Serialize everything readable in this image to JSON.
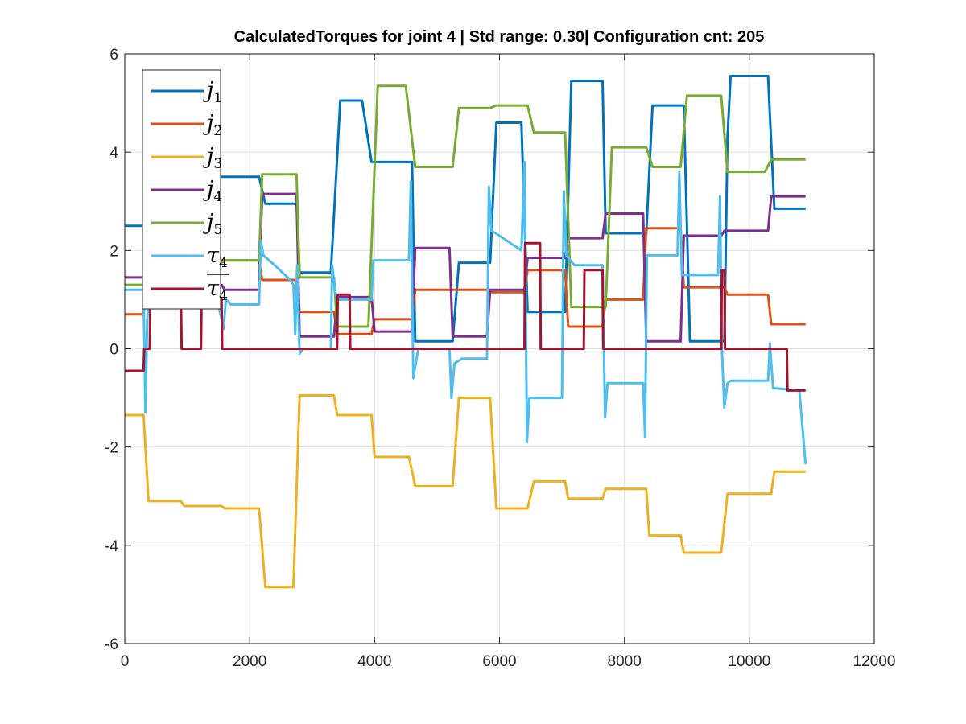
{
  "chart_data": {
    "type": "line",
    "title": "CalculatedTorques for joint 4 | Std range: 0.30| Configuration cnt: 205",
    "xlabel": "",
    "ylabel": "",
    "xlim": [
      0,
      12000
    ],
    "ylim": [
      -6,
      6
    ],
    "xticks": [
      0,
      2000,
      4000,
      6000,
      8000,
      10000,
      12000
    ],
    "yticks": [
      -6,
      -4,
      -2,
      0,
      2,
      4,
      6
    ],
    "xtick_labels": [
      "0",
      "2000",
      "4000",
      "6000",
      "8000",
      "10000",
      "12000"
    ],
    "ytick_labels": [
      "-6",
      "-4",
      "-2",
      "0",
      "2",
      "4",
      "6"
    ],
    "grid": true,
    "legend_position": "top-left",
    "series": [
      {
        "name": "j",
        "sub": "1",
        "overline": false,
        "color": "#0072BD",
        "x": [
          0,
          300,
          380,
          1500,
          1600,
          2150,
          2250,
          2750,
          2800,
          3300,
          3450,
          3600,
          3800,
          3950,
          4050,
          4600,
          4650,
          4850,
          5250,
          5350,
          5850,
          5950,
          6350,
          6450,
          6750,
          7050,
          7150,
          7650,
          7700,
          8350,
          8450,
          8800,
          8950,
          9050,
          9450,
          9600,
          9650,
          9700,
          10100,
          10300,
          10400,
          10900
        ],
        "y": [
          2.5,
          2.5,
          3.5,
          3.5,
          3.5,
          3.5,
          2.95,
          2.95,
          1.55,
          1.55,
          5.05,
          5.05,
          5.05,
          3.8,
          3.8,
          3.8,
          0.15,
          0.15,
          0.15,
          1.75,
          1.75,
          4.6,
          4.6,
          0.75,
          0.75,
          0.75,
          5.45,
          5.45,
          2.35,
          2.35,
          4.95,
          4.95,
          4.95,
          0.15,
          0.15,
          0.15,
          4.3,
          5.55,
          5.55,
          5.55,
          2.85,
          2.85
        ]
      },
      {
        "name": "j",
        "sub": "2",
        "overline": false,
        "color": "#D95319",
        "x": [
          0,
          300,
          380,
          2150,
          2200,
          2750,
          2800,
          3350,
          3400,
          3950,
          4000,
          4600,
          4650,
          5800,
          5850,
          6400,
          6450,
          7050,
          7100,
          7650,
          7700,
          8300,
          8350,
          8900,
          8950,
          9600,
          9650,
          10300,
          10350,
          10900
        ],
        "y": [
          0.7,
          0.7,
          1.8,
          1.8,
          1.4,
          1.4,
          0.75,
          0.75,
          0.3,
          0.3,
          0.6,
          0.6,
          1.2,
          1.2,
          1.15,
          1.15,
          1.6,
          1.6,
          0.45,
          0.45,
          1.0,
          1.0,
          2.45,
          2.45,
          1.25,
          1.25,
          1.1,
          1.1,
          0.5,
          0.5
        ]
      },
      {
        "name": "j",
        "sub": "3",
        "overline": false,
        "color": "#EDB120",
        "x": [
          0,
          300,
          380,
          900,
          950,
          1550,
          1600,
          2150,
          2250,
          2700,
          2800,
          3350,
          3400,
          3950,
          4000,
          4550,
          4650,
          5250,
          5350,
          5850,
          5950,
          6450,
          6550,
          7050,
          7100,
          7650,
          7700,
          8350,
          8400,
          8900,
          8950,
          9550,
          9650,
          10350,
          10400,
          10900
        ],
        "y": [
          -1.35,
          -1.35,
          -3.1,
          -3.1,
          -3.2,
          -3.2,
          -3.25,
          -3.25,
          -4.85,
          -4.85,
          -0.95,
          -0.95,
          -1.35,
          -1.35,
          -2.2,
          -2.2,
          -2.8,
          -2.8,
          -1.0,
          -1.0,
          -3.25,
          -3.25,
          -2.7,
          -2.7,
          -3.05,
          -3.05,
          -2.85,
          -2.85,
          -3.8,
          -3.8,
          -4.15,
          -4.15,
          -2.95,
          -2.95,
          -2.5,
          -2.5
        ]
      },
      {
        "name": "j",
        "sub": "4",
        "overline": false,
        "color": "#7E2F8E",
        "x": [
          0,
          300,
          380,
          1550,
          1600,
          2150,
          2200,
          2750,
          2800,
          3350,
          3400,
          3950,
          4000,
          4600,
          4650,
          5200,
          5250,
          5800,
          5850,
          6400,
          6450,
          7050,
          7100,
          7650,
          7700,
          8300,
          8350,
          8900,
          8950,
          9550,
          9600,
          10300,
          10350,
          10900
        ],
        "y": [
          1.45,
          1.45,
          1.3,
          1.3,
          1.2,
          1.2,
          3.15,
          3.15,
          0.25,
          0.25,
          1.05,
          1.05,
          0.35,
          0.35,
          2.05,
          2.05,
          0.25,
          0.25,
          1.2,
          1.2,
          1.85,
          1.85,
          2.25,
          2.25,
          2.75,
          2.75,
          0.15,
          0.15,
          2.3,
          2.3,
          2.4,
          2.4,
          3.1,
          3.1
        ]
      },
      {
        "name": "j",
        "sub": "5",
        "overline": false,
        "color": "#77AC30",
        "x": [
          0,
          300,
          380,
          1550,
          1600,
          2150,
          2200,
          2750,
          2800,
          3350,
          3400,
          3900,
          4050,
          4500,
          4650,
          5250,
          5350,
          5850,
          5950,
          6450,
          6550,
          7050,
          7150,
          7700,
          7800,
          8350,
          8450,
          8900,
          9000,
          9550,
          9650,
          10250,
          10350,
          10900
        ],
        "y": [
          1.3,
          1.3,
          1.75,
          1.75,
          1.8,
          1.8,
          3.55,
          3.55,
          1.45,
          1.45,
          0.45,
          0.45,
          5.35,
          5.35,
          3.7,
          3.7,
          4.9,
          4.9,
          4.95,
          4.95,
          4.4,
          4.4,
          0.85,
          0.85,
          4.1,
          4.1,
          3.7,
          3.7,
          5.15,
          5.15,
          3.6,
          3.6,
          3.85,
          3.85
        ]
      },
      {
        "name": "τ",
        "sub": "4",
        "overline": false,
        "color": "#4DBEEE",
        "x": [
          0,
          300,
          330,
          360,
          380,
          420,
          480,
          1500,
          1580,
          1620,
          1700,
          2150,
          2180,
          2220,
          2400,
          2650,
          2700,
          2730,
          2760,
          2800,
          2850,
          3300,
          3320,
          3380,
          3400,
          3550,
          3700,
          3950,
          3980,
          4050,
          4300,
          4550,
          4580,
          4620,
          4700,
          5200,
          5230,
          5280,
          5400,
          5800,
          5830,
          5870,
          6000,
          6350,
          6400,
          6440,
          6480,
          6600,
          7000,
          7030,
          7070,
          7200,
          7650,
          7690,
          7730,
          7800,
          8300,
          8330,
          8360,
          8450,
          8850,
          8880,
          8920,
          9100,
          9500,
          9530,
          9560,
          9600,
          9650,
          9700,
          10300,
          10330,
          10380,
          10800,
          10900
        ],
        "y": [
          1.2,
          1.2,
          -1.3,
          0.6,
          1.0,
          1.0,
          0.9,
          0.9,
          0.4,
          1.0,
          0.9,
          0.9,
          2.2,
          1.9,
          1.7,
          1.4,
          1.3,
          0.3,
          1.7,
          -0.1,
          0.0,
          0.0,
          1.7,
          1.1,
          1.0,
          1.0,
          1.0,
          1.0,
          1.8,
          1.8,
          1.8,
          1.8,
          3.4,
          -0.6,
          0.0,
          0.0,
          -1.0,
          -0.3,
          -0.2,
          -0.2,
          3.3,
          2.4,
          2.3,
          2.0,
          3.8,
          -1.9,
          -1.0,
          -1.0,
          -1.0,
          3.2,
          1.9,
          1.7,
          1.7,
          -1.4,
          -0.7,
          -0.7,
          -0.7,
          -1.8,
          1.9,
          1.9,
          1.9,
          3.6,
          1.5,
          1.5,
          1.5,
          3.1,
          0.0,
          -1.2,
          -0.7,
          -0.65,
          -0.65,
          0.1,
          -0.8,
          -0.85,
          -2.35
        ]
      },
      {
        "name": "τ",
        "sub": "4",
        "overline": true,
        "color": "#A2142F",
        "x": [
          0,
          300,
          310,
          400,
          410,
          900,
          910,
          1220,
          1230,
          1550,
          1560,
          3400,
          3410,
          3600,
          3610,
          3950,
          3960,
          6400,
          6410,
          6650,
          6660,
          7350,
          7360,
          7650,
          7660,
          9550,
          9560,
          9600,
          9610,
          10600,
          10610,
          10900
        ],
        "y": [
          -0.45,
          -0.45,
          0.0,
          0.0,
          1.0,
          1.0,
          0.0,
          0.0,
          1.0,
          1.0,
          0.0,
          0.0,
          1.1,
          1.1,
          0.0,
          0.0,
          0.0,
          0.0,
          2.15,
          2.15,
          0.0,
          0.0,
          1.6,
          1.6,
          0.0,
          0.0,
          1.6,
          1.6,
          0.0,
          0.0,
          -0.85,
          -0.85
        ]
      }
    ]
  }
}
